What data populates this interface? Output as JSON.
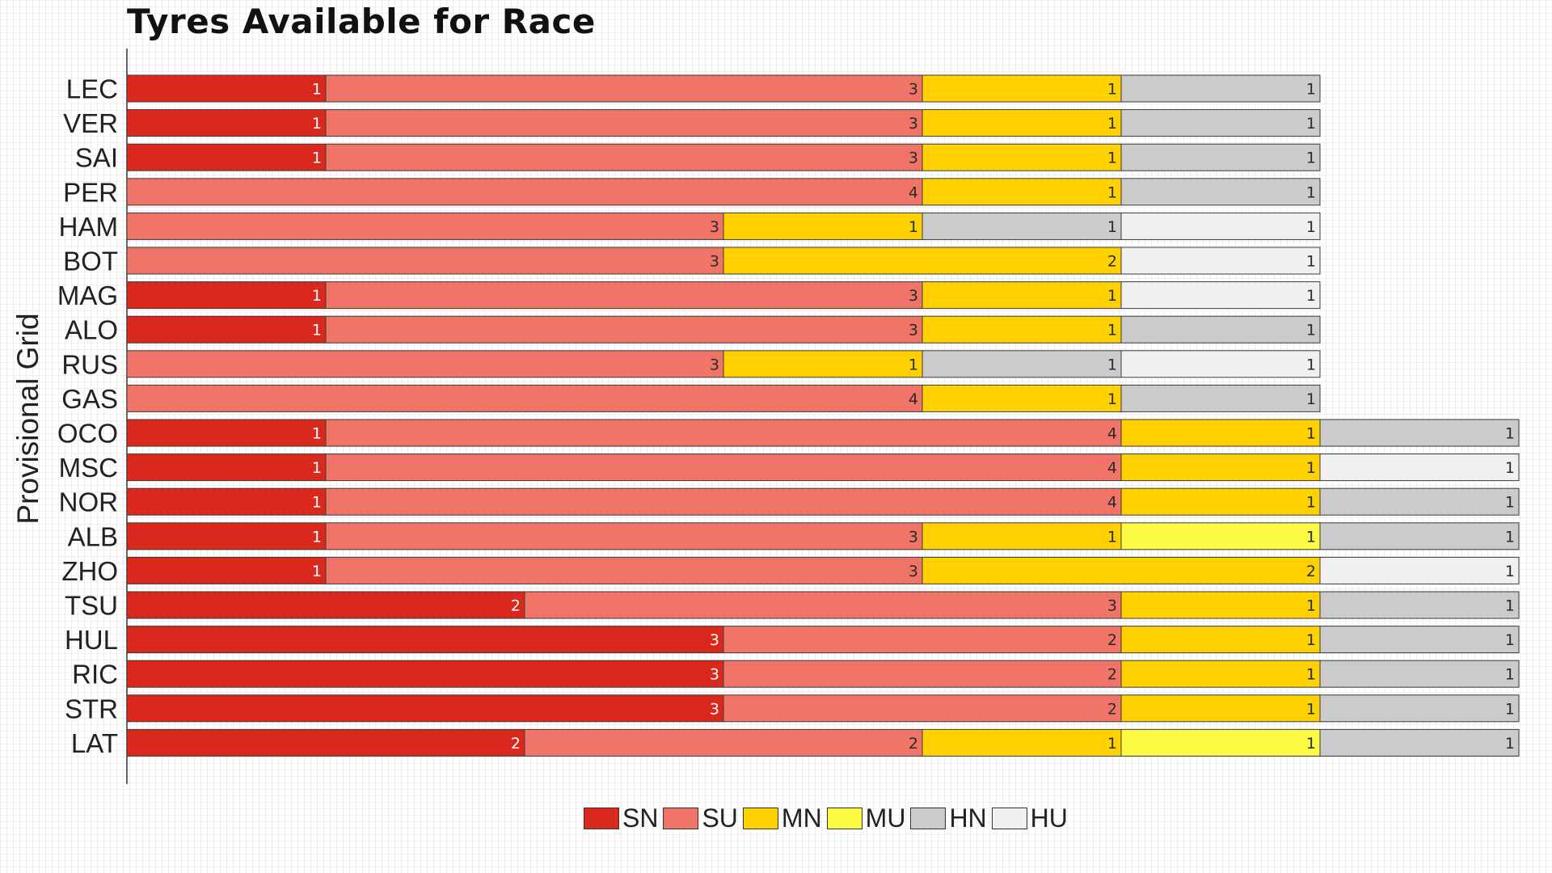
{
  "colors": {
    "SN": "#da291c",
    "SU": "#f07468",
    "MN": "#ffd100",
    "MU": "#fefb45",
    "HN": "#cbcbcb",
    "HU": "#f0f0f0"
  },
  "chart_data": {
    "type": "bar",
    "orientation": "horizontal",
    "stacked": true,
    "title": "Tyres Available for Race",
    "ylabel": "Provisional Grid",
    "xlabel": "",
    "xlim": [
      0,
      7
    ],
    "legend_position": "bottom",
    "legend": [
      "SN",
      "SU",
      "MN",
      "MU",
      "HN",
      "HU"
    ],
    "categories": [
      "LEC",
      "VER",
      "SAI",
      "PER",
      "HAM",
      "BOT",
      "MAG",
      "ALO",
      "RUS",
      "GAS",
      "OCO",
      "MSC",
      "NOR",
      "ALB",
      "ZHO",
      "TSU",
      "HUL",
      "RIC",
      "STR",
      "LAT"
    ],
    "rows": [
      {
        "driver": "LEC",
        "segments": [
          {
            "type": "SN",
            "count": 1
          },
          {
            "type": "SU",
            "count": 3
          },
          {
            "type": "MN",
            "count": 1
          },
          {
            "type": "HN",
            "count": 1
          }
        ]
      },
      {
        "driver": "VER",
        "segments": [
          {
            "type": "SN",
            "count": 1
          },
          {
            "type": "SU",
            "count": 3
          },
          {
            "type": "MN",
            "count": 1
          },
          {
            "type": "HN",
            "count": 1
          }
        ]
      },
      {
        "driver": "SAI",
        "segments": [
          {
            "type": "SN",
            "count": 1
          },
          {
            "type": "SU",
            "count": 3
          },
          {
            "type": "MN",
            "count": 1
          },
          {
            "type": "HN",
            "count": 1
          }
        ]
      },
      {
        "driver": "PER",
        "segments": [
          {
            "type": "SU",
            "count": 4
          },
          {
            "type": "MN",
            "count": 1
          },
          {
            "type": "HN",
            "count": 1
          }
        ]
      },
      {
        "driver": "HAM",
        "segments": [
          {
            "type": "SU",
            "count": 3
          },
          {
            "type": "MN",
            "count": 1
          },
          {
            "type": "HN",
            "count": 1
          },
          {
            "type": "HU",
            "count": 1
          }
        ]
      },
      {
        "driver": "BOT",
        "segments": [
          {
            "type": "SU",
            "count": 3
          },
          {
            "type": "MN",
            "count": 2
          },
          {
            "type": "HU",
            "count": 1
          }
        ]
      },
      {
        "driver": "MAG",
        "segments": [
          {
            "type": "SN",
            "count": 1
          },
          {
            "type": "SU",
            "count": 3
          },
          {
            "type": "MN",
            "count": 1
          },
          {
            "type": "HU",
            "count": 1
          }
        ]
      },
      {
        "driver": "ALO",
        "segments": [
          {
            "type": "SN",
            "count": 1
          },
          {
            "type": "SU",
            "count": 3
          },
          {
            "type": "MN",
            "count": 1
          },
          {
            "type": "HN",
            "count": 1
          }
        ]
      },
      {
        "driver": "RUS",
        "segments": [
          {
            "type": "SU",
            "count": 3
          },
          {
            "type": "MN",
            "count": 1
          },
          {
            "type": "HN",
            "count": 1
          },
          {
            "type": "HU",
            "count": 1
          }
        ]
      },
      {
        "driver": "GAS",
        "segments": [
          {
            "type": "SU",
            "count": 4
          },
          {
            "type": "MN",
            "count": 1
          },
          {
            "type": "HN",
            "count": 1
          }
        ]
      },
      {
        "driver": "OCO",
        "segments": [
          {
            "type": "SN",
            "count": 1
          },
          {
            "type": "SU",
            "count": 4
          },
          {
            "type": "MN",
            "count": 1
          },
          {
            "type": "HN",
            "count": 1
          }
        ]
      },
      {
        "driver": "MSC",
        "segments": [
          {
            "type": "SN",
            "count": 1
          },
          {
            "type": "SU",
            "count": 4
          },
          {
            "type": "MN",
            "count": 1
          },
          {
            "type": "HU",
            "count": 1
          }
        ]
      },
      {
        "driver": "NOR",
        "segments": [
          {
            "type": "SN",
            "count": 1
          },
          {
            "type": "SU",
            "count": 4
          },
          {
            "type": "MN",
            "count": 1
          },
          {
            "type": "HN",
            "count": 1
          }
        ]
      },
      {
        "driver": "ALB",
        "segments": [
          {
            "type": "SN",
            "count": 1
          },
          {
            "type": "SU",
            "count": 3
          },
          {
            "type": "MN",
            "count": 1
          },
          {
            "type": "MU",
            "count": 1
          },
          {
            "type": "HN",
            "count": 1
          }
        ]
      },
      {
        "driver": "ZHO",
        "segments": [
          {
            "type": "SN",
            "count": 1
          },
          {
            "type": "SU",
            "count": 3
          },
          {
            "type": "MN",
            "count": 2
          },
          {
            "type": "HU",
            "count": 1
          }
        ]
      },
      {
        "driver": "TSU",
        "segments": [
          {
            "type": "SN",
            "count": 2
          },
          {
            "type": "SU",
            "count": 3
          },
          {
            "type": "MN",
            "count": 1
          },
          {
            "type": "HN",
            "count": 1
          }
        ]
      },
      {
        "driver": "HUL",
        "segments": [
          {
            "type": "SN",
            "count": 3
          },
          {
            "type": "SU",
            "count": 2
          },
          {
            "type": "MN",
            "count": 1
          },
          {
            "type": "HN",
            "count": 1
          }
        ]
      },
      {
        "driver": "RIC",
        "segments": [
          {
            "type": "SN",
            "count": 3
          },
          {
            "type": "SU",
            "count": 2
          },
          {
            "type": "MN",
            "count": 1
          },
          {
            "type": "HN",
            "count": 1
          }
        ]
      },
      {
        "driver": "STR",
        "segments": [
          {
            "type": "SN",
            "count": 3
          },
          {
            "type": "SU",
            "count": 2
          },
          {
            "type": "MN",
            "count": 1
          },
          {
            "type": "HN",
            "count": 1
          }
        ]
      },
      {
        "driver": "LAT",
        "segments": [
          {
            "type": "SN",
            "count": 2
          },
          {
            "type": "SU",
            "count": 2
          },
          {
            "type": "MN",
            "count": 1
          },
          {
            "type": "MU",
            "count": 1
          },
          {
            "type": "HN",
            "count": 1
          }
        ]
      }
    ]
  }
}
